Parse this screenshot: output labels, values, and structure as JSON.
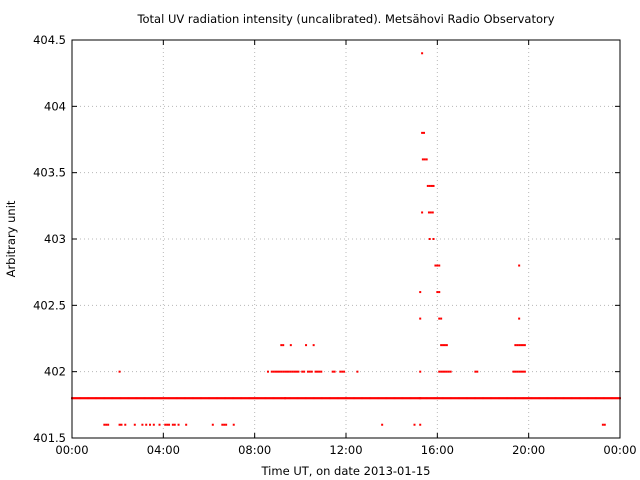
{
  "chart_data": {
    "type": "scatter",
    "title": "Total UV radiation intensity (uncalibrated). Metsähovi Radio Observatory",
    "xlabel": "Time UT, on date 2013-01-15",
    "ylabel": "Arbitrary unit",
    "xlim": [
      "00:00",
      "24:00"
    ],
    "ylim": [
      401.5,
      404.5
    ],
    "grid": true,
    "marker_color": "#ff0000",
    "xticks": [
      "00:00",
      "04:00",
      "08:00",
      "12:00",
      "16:00",
      "20:00",
      "00:00"
    ],
    "yticks": [
      "401.5",
      "402",
      "402.5",
      "403",
      "403.5",
      "404",
      "404.5"
    ],
    "series": [
      {
        "baseline": {
          "value": 401.8,
          "from": "00:00",
          "to": "24:00",
          "step_minutes": 3
        },
        "points": [
          [
            "01:25",
            401.6
          ],
          [
            "01:30",
            401.6
          ],
          [
            "01:35",
            401.6
          ],
          [
            "02:05",
            402.0
          ],
          [
            "02:05",
            401.6
          ],
          [
            "02:10",
            401.6
          ],
          [
            "02:20",
            401.6
          ],
          [
            "02:45",
            401.6
          ],
          [
            "03:05",
            401.6
          ],
          [
            "03:15",
            401.6
          ],
          [
            "03:25",
            401.6
          ],
          [
            "03:35",
            401.6
          ],
          [
            "03:50",
            401.6
          ],
          [
            "04:05",
            401.6
          ],
          [
            "04:10",
            401.6
          ],
          [
            "04:15",
            401.6
          ],
          [
            "04:25",
            401.6
          ],
          [
            "04:30",
            401.6
          ],
          [
            "04:40",
            401.6
          ],
          [
            "05:00",
            401.6
          ],
          [
            "06:10",
            401.6
          ],
          [
            "06:35",
            401.6
          ],
          [
            "06:40",
            401.6
          ],
          [
            "06:45",
            401.6
          ],
          [
            "07:05",
            401.6
          ],
          [
            "08:35",
            402.0
          ],
          [
            "08:45",
            402.0
          ],
          [
            "08:50",
            402.0
          ],
          [
            "08:55",
            402.0
          ],
          [
            "09:00",
            402.0
          ],
          [
            "09:05",
            402.0
          ],
          [
            "09:10",
            402.2
          ],
          [
            "09:10",
            402.0
          ],
          [
            "09:15",
            402.2
          ],
          [
            "09:15",
            402.0
          ],
          [
            "09:20",
            402.0
          ],
          [
            "09:25",
            402.0
          ],
          [
            "09:30",
            402.0
          ],
          [
            "09:35",
            402.2
          ],
          [
            "09:35",
            402.0
          ],
          [
            "09:40",
            402.0
          ],
          [
            "09:45",
            402.0
          ],
          [
            "09:50",
            402.0
          ],
          [
            "09:55",
            402.0
          ],
          [
            "09:20",
            401.8
          ],
          [
            "10:05",
            402.0
          ],
          [
            "10:10",
            402.0
          ],
          [
            "10:15",
            402.2
          ],
          [
            "10:20",
            402.0
          ],
          [
            "10:25",
            402.0
          ],
          [
            "10:30",
            402.0
          ],
          [
            "10:35",
            402.2
          ],
          [
            "10:40",
            402.0
          ],
          [
            "10:45",
            402.0
          ],
          [
            "10:50",
            402.0
          ],
          [
            "10:55",
            402.0
          ],
          [
            "11:25",
            402.0
          ],
          [
            "11:30",
            402.0
          ],
          [
            "11:45",
            402.0
          ],
          [
            "11:50",
            402.0
          ],
          [
            "11:55",
            402.0
          ],
          [
            "12:30",
            402.0
          ],
          [
            "13:35",
            401.6
          ],
          [
            "15:00",
            401.6
          ],
          [
            "15:15",
            401.6
          ],
          [
            "15:15",
            401.8
          ],
          [
            "15:15",
            402.0
          ],
          [
            "15:15",
            402.4
          ],
          [
            "15:15",
            402.6
          ],
          [
            "15:20",
            403.2
          ],
          [
            "15:20",
            404.4
          ],
          [
            "15:20",
            403.8
          ],
          [
            "15:25",
            403.8
          ],
          [
            "15:22",
            403.6
          ],
          [
            "15:27",
            403.6
          ],
          [
            "15:32",
            403.6
          ],
          [
            "15:35",
            403.4
          ],
          [
            "15:40",
            403.4
          ],
          [
            "15:45",
            403.4
          ],
          [
            "15:50",
            403.4
          ],
          [
            "15:38",
            403.2
          ],
          [
            "15:43",
            403.2
          ],
          [
            "15:48",
            403.2
          ],
          [
            "15:40",
            403.0
          ],
          [
            "15:50",
            403.0
          ],
          [
            "15:55",
            402.8
          ],
          [
            "16:00",
            402.8
          ],
          [
            "16:05",
            402.8
          ],
          [
            "16:00",
            402.6
          ],
          [
            "16:05",
            402.6
          ],
          [
            "16:05",
            402.4
          ],
          [
            "16:10",
            402.4
          ],
          [
            "16:10",
            402.2
          ],
          [
            "16:15",
            402.2
          ],
          [
            "16:20",
            402.2
          ],
          [
            "16:25",
            402.2
          ],
          [
            "16:05",
            402.0
          ],
          [
            "16:10",
            402.0
          ],
          [
            "16:15",
            402.0
          ],
          [
            "16:20",
            402.0
          ],
          [
            "16:25",
            402.0
          ],
          [
            "16:30",
            402.0
          ],
          [
            "16:35",
            402.0
          ],
          [
            "17:40",
            402.0
          ],
          [
            "17:45",
            402.0
          ],
          [
            "19:20",
            402.0
          ],
          [
            "19:25",
            402.0
          ],
          [
            "19:30",
            402.0
          ],
          [
            "19:35",
            402.0
          ],
          [
            "19:40",
            402.0
          ],
          [
            "19:45",
            402.0
          ],
          [
            "19:50",
            402.0
          ],
          [
            "19:25",
            402.2
          ],
          [
            "19:30",
            402.2
          ],
          [
            "19:35",
            402.2
          ],
          [
            "19:40",
            402.2
          ],
          [
            "19:45",
            402.2
          ],
          [
            "19:50",
            402.2
          ],
          [
            "19:35",
            402.4
          ],
          [
            "19:35",
            402.8
          ],
          [
            "23:15",
            401.6
          ],
          [
            "23:20",
            401.6
          ]
        ]
      }
    ]
  }
}
